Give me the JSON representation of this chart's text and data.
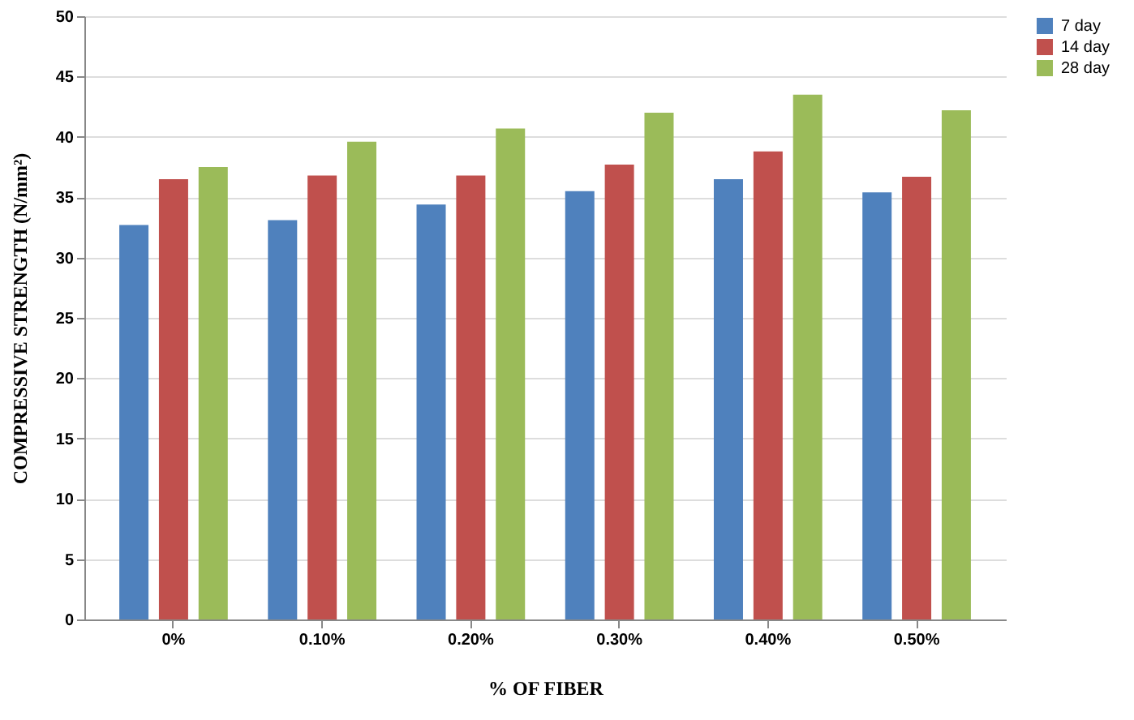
{
  "chart_data": {
    "type": "bar",
    "xlabel": "% OF FIBER",
    "ylabel": "COMPRESSIVE  STRENGTH (N/mm²)",
    "categories": [
      "0%",
      "0.10%",
      "0.20%",
      "0.30%",
      "0.40%",
      "0.50%"
    ],
    "series": [
      {
        "name": "7 day",
        "color": "#4f81bd",
        "values": [
          32.7,
          33.1,
          34.4,
          35.5,
          36.5,
          35.4
        ]
      },
      {
        "name": "14 day",
        "color": "#c0504d",
        "values": [
          36.5,
          36.8,
          36.8,
          37.7,
          38.8,
          36.7
        ]
      },
      {
        "name": "28 day",
        "color": "#9bbb59",
        "values": [
          37.5,
          39.6,
          40.7,
          42.0,
          43.5,
          42.2
        ]
      }
    ],
    "ylim": [
      0,
      50
    ],
    "yticks": [
      0,
      5,
      10,
      15,
      20,
      25,
      30,
      35,
      40,
      45,
      50
    ],
    "grid": "y",
    "legend": "right"
  }
}
